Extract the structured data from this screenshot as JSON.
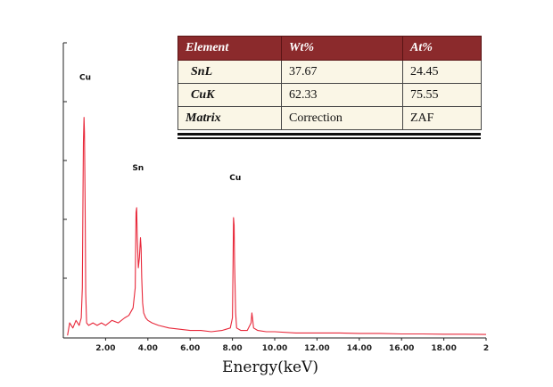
{
  "chart_data": {
    "type": "line",
    "title": "",
    "xlabel": "Energy(keV)",
    "ylabel": "",
    "xlim": [
      0,
      20
    ],
    "ylim": [
      0,
      100
    ],
    "xticks": [
      "2.00",
      "4.00",
      "6.00",
      "8.00",
      "10.00",
      "12.00",
      "14.00",
      "16.00",
      "18.00",
      "2"
    ],
    "xtick_values": [
      2,
      4,
      6,
      8,
      10,
      12,
      14,
      16,
      18,
      20
    ],
    "grid": false,
    "series": [
      {
        "color": "#e8283a",
        "x": [
          0.2,
          0.3,
          0.45,
          0.6,
          0.75,
          0.85,
          0.9,
          0.93,
          0.95,
          0.98,
          1.0,
          1.03,
          1.06,
          1.1,
          1.2,
          1.4,
          1.6,
          1.8,
          2.0,
          2.3,
          2.6,
          2.9,
          3.1,
          3.3,
          3.4,
          3.44,
          3.47,
          3.5,
          3.55,
          3.6,
          3.65,
          3.68,
          3.71,
          3.75,
          3.8,
          3.9,
          4.0,
          4.2,
          4.5,
          5.0,
          5.5,
          6.0,
          6.5,
          7.0,
          7.5,
          7.9,
          8.0,
          8.03,
          8.05,
          8.08,
          8.1,
          8.15,
          8.2,
          8.4,
          8.7,
          8.88,
          8.92,
          8.96,
          9.0,
          9.2,
          9.6,
          10.0,
          11.0,
          12.0,
          13.0,
          14.0,
          15.0,
          16.0,
          17.0,
          18.0,
          19.0,
          20.0
        ],
        "y": [
          1,
          6,
          4,
          7,
          5,
          8,
          20,
          55,
          78,
          88,
          82,
          55,
          18,
          6,
          5,
          6,
          5,
          6,
          5,
          7,
          6,
          8,
          9,
          12,
          20,
          50,
          52,
          40,
          28,
          32,
          40,
          36,
          24,
          14,
          10,
          8,
          7,
          6,
          5,
          4,
          3.5,
          3,
          3,
          2.5,
          3,
          4,
          8,
          30,
          48,
          45,
          30,
          10,
          4,
          3,
          3,
          6,
          10,
          7,
          4,
          3,
          2.5,
          2.5,
          2,
          2,
          2,
          1.8,
          1.8,
          1.6,
          1.6,
          1.5,
          1.5,
          1.4
        ]
      }
    ],
    "annotations": [
      {
        "text": "Cu",
        "x": 0.95
      },
      {
        "text": "Sn",
        "x": 3.45
      },
      {
        "text": "Cu",
        "x": 8.05
      }
    ]
  },
  "table": {
    "headers": [
      "Element",
      "Wt%",
      "At%"
    ],
    "rows": [
      [
        "SnL",
        "37.67",
        "24.45"
      ],
      [
        "CuK",
        "62.33",
        "75.55"
      ],
      [
        "Matrix",
        "Correction",
        "ZAF"
      ]
    ]
  }
}
